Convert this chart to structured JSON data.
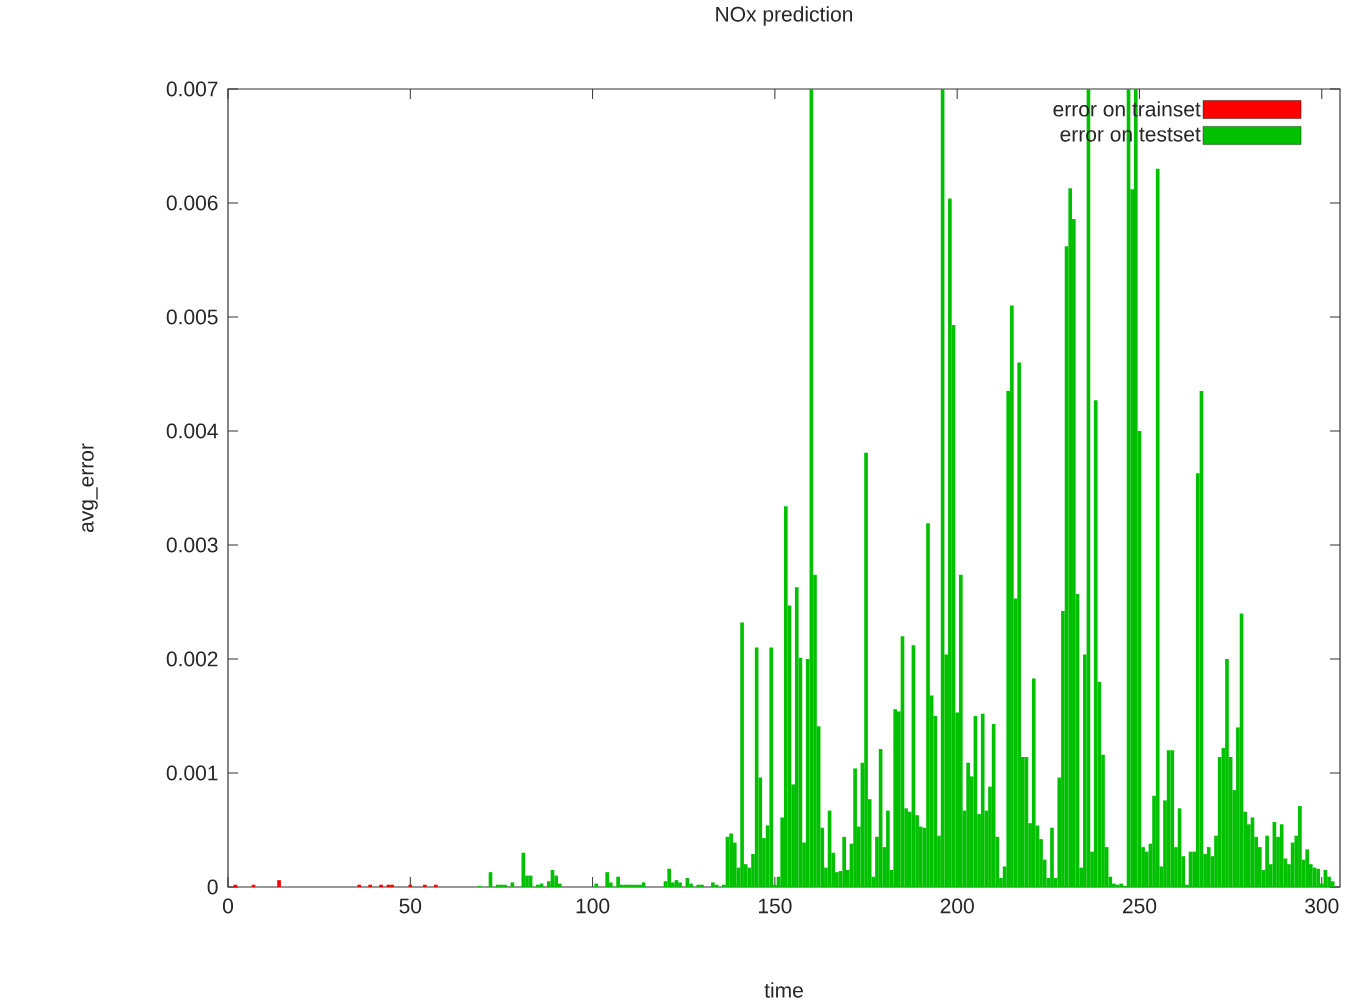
{
  "chart_data": {
    "type": "bar",
    "title": "NOx prediction",
    "xlabel": "time",
    "ylabel": "avg_error",
    "xlim": [
      0,
      305
    ],
    "ylim": [
      0,
      0.007
    ],
    "xticks": [
      0,
      50,
      100,
      150,
      200,
      250,
      300
    ],
    "yticks": [
      0,
      0.001,
      0.002,
      0.003,
      0.004,
      0.005,
      0.006,
      0.007
    ],
    "legend": "top right",
    "series": [
      {
        "name": "error on trainset",
        "color": "#ff0000",
        "x": [
          2,
          7,
          14,
          36,
          39,
          42,
          44,
          45,
          50,
          54,
          57
        ],
        "values": [
          2e-05,
          2e-05,
          6e-05,
          2e-05,
          2e-05,
          2e-05,
          2e-05,
          2e-05,
          2e-05,
          2e-05,
          2e-05
        ]
      },
      {
        "name": "error on testset",
        "color": "#00c000",
        "x": [
          69,
          72,
          74,
          75,
          76,
          78,
          81,
          82,
          83,
          85,
          86,
          88,
          89,
          90,
          91,
          101,
          104,
          105,
          107,
          108,
          109,
          110,
          111,
          112,
          113,
          114,
          120,
          121,
          122,
          123,
          124,
          126,
          127,
          129,
          130,
          133,
          134,
          136,
          137,
          138,
          139,
          140,
          141,
          142,
          143,
          144,
          145,
          146,
          147,
          148,
          149,
          150,
          151,
          152,
          153,
          154,
          155,
          156,
          157,
          158,
          159,
          160,
          161,
          162,
          163,
          164,
          165,
          166,
          167,
          168,
          169,
          170,
          171,
          172,
          173,
          174,
          175,
          176,
          177,
          178,
          179,
          180,
          181,
          182,
          183,
          184,
          185,
          186,
          187,
          188,
          189,
          190,
          191,
          192,
          193,
          194,
          195,
          196,
          197,
          198,
          199,
          200,
          201,
          202,
          203,
          204,
          205,
          206,
          207,
          208,
          209,
          210,
          211,
          212,
          213,
          214,
          215,
          216,
          217,
          218,
          219,
          220,
          221,
          222,
          223,
          224,
          225,
          226,
          227,
          228,
          229,
          230,
          231,
          232,
          233,
          234,
          235,
          236,
          237,
          238,
          239,
          240,
          241,
          242,
          243,
          244,
          245,
          246,
          247,
          248,
          249,
          250,
          251,
          252,
          253,
          254,
          255,
          256,
          257,
          258,
          259,
          260,
          261,
          262,
          263,
          264,
          265,
          266,
          267,
          268,
          269,
          270,
          271,
          272,
          273,
          274,
          275,
          276,
          277,
          278,
          279,
          280,
          281,
          282,
          283,
          284,
          285,
          286,
          287,
          288,
          289,
          290,
          291,
          292,
          293,
          294,
          295,
          296,
          297,
          298,
          299,
          300,
          301,
          302,
          303
        ],
        "values": [
          1e-05,
          0.00013,
          2e-05,
          2e-05,
          2e-05,
          4e-05,
          0.0003,
          0.0001,
          0.0001,
          2e-05,
          3e-05,
          5e-05,
          0.00015,
          0.0001,
          3e-05,
          3e-05,
          0.00013,
          4e-05,
          9e-05,
          2e-05,
          2e-05,
          2e-05,
          2e-05,
          2e-05,
          2e-05,
          4e-05,
          5e-05,
          0.00016,
          4e-05,
          6e-05,
          4e-05,
          8e-05,
          3e-05,
          2e-05,
          2e-05,
          4e-05,
          2e-05,
          2e-05,
          0.00044,
          0.00047,
          0.00039,
          0.00017,
          0.00232,
          0.0002,
          0.00017,
          0.00029,
          0.0021,
          0.00096,
          0.00043,
          0.00054,
          0.0021,
          2e-05,
          9e-05,
          0.00061,
          0.00334,
          0.00247,
          0.0009,
          0.00263,
          0.00201,
          0.00039,
          0.002,
          0.007,
          0.00274,
          0.00141,
          0.00052,
          0.00017,
          0.00067,
          0.0003,
          0.00013,
          0.00014,
          0.00044,
          0.00015,
          0.00038,
          0.00104,
          0.00053,
          0.00109,
          0.00381,
          0.00077,
          9e-05,
          0.00044,
          0.00121,
          0.00035,
          0.00067,
          0.00015,
          0.00156,
          0.00154,
          0.0022,
          0.00069,
          0.00066,
          0.00212,
          0.00063,
          0.00053,
          0.00052,
          0.00319,
          0.00168,
          0.0015,
          0.00045,
          0.007,
          0.00204,
          0.00604,
          0.00493,
          0.00153,
          0.00274,
          0.00067,
          0.00109,
          0.00097,
          0.0015,
          0.00064,
          0.00152,
          0.00067,
          0.00088,
          0.00143,
          0.00044,
          8e-05,
          0.00018,
          0.00435,
          0.0051,
          0.00253,
          0.0046,
          0.00114,
          0.00114,
          0.00056,
          0.00183,
          0.00054,
          0.00042,
          0.00024,
          8e-05,
          0.00052,
          8e-05,
          0.00096,
          0.00242,
          0.00562,
          0.00613,
          0.00586,
          0.00257,
          0.00017,
          0.00204,
          0.007,
          0.00031,
          0.00427,
          0.0018,
          0.00116,
          0.00035,
          9e-05,
          3e-05,
          2e-05,
          3e-05,
          1e-05,
          0.007,
          0.00612,
          0.007,
          0.004,
          0.00035,
          0.00031,
          0.00038,
          0.0008,
          0.0063,
          0.00018,
          0.00076,
          0.0012,
          0.0012,
          0.00035,
          0.00069,
          0.00027,
          2e-05,
          0.00031,
          0.00031,
          0.00363,
          0.00435,
          0.00029,
          0.00035,
          0.00027,
          0.00045,
          0.00114,
          0.00122,
          0.002,
          0.00114,
          0.00085,
          0.0014,
          0.0024,
          0.00066,
          0.00055,
          0.00061,
          0.00044,
          0.00035,
          0.00015,
          0.00045,
          0.0002,
          0.00057,
          0.00044,
          0.00055,
          0.00025,
          0.0002,
          0.00039,
          0.00045,
          0.00071,
          0.00024,
          0.00033,
          0.0002,
          0.00017,
          0.00016,
          3e-05,
          0.00015,
          9e-05,
          5e-05
        ]
      }
    ]
  }
}
